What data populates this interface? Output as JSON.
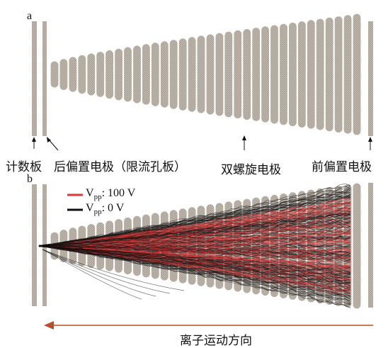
{
  "panels": {
    "a": {
      "letter": "a",
      "labels": {
        "counter_plate": "计数板",
        "rear_bias_electrode": "后偏置电极（限流孔板）",
        "double_helix_electrode": "双螺旋电极",
        "front_bias_electrode": "前偏置电极"
      }
    },
    "b": {
      "letter": "b",
      "legend": [
        {
          "label": "V",
          "sub": "pp",
          "value": ": 100 V",
          "color": "#d83a3a"
        },
        {
          "label": "V",
          "sub": "pp",
          "value": ": 0 V",
          "color": "#111111"
        }
      ],
      "direction_label": "离子运动方向",
      "arrow_color": "#b5502a"
    }
  },
  "colors": {
    "electrode": "#b0a79e",
    "plate": "#9c948b"
  }
}
